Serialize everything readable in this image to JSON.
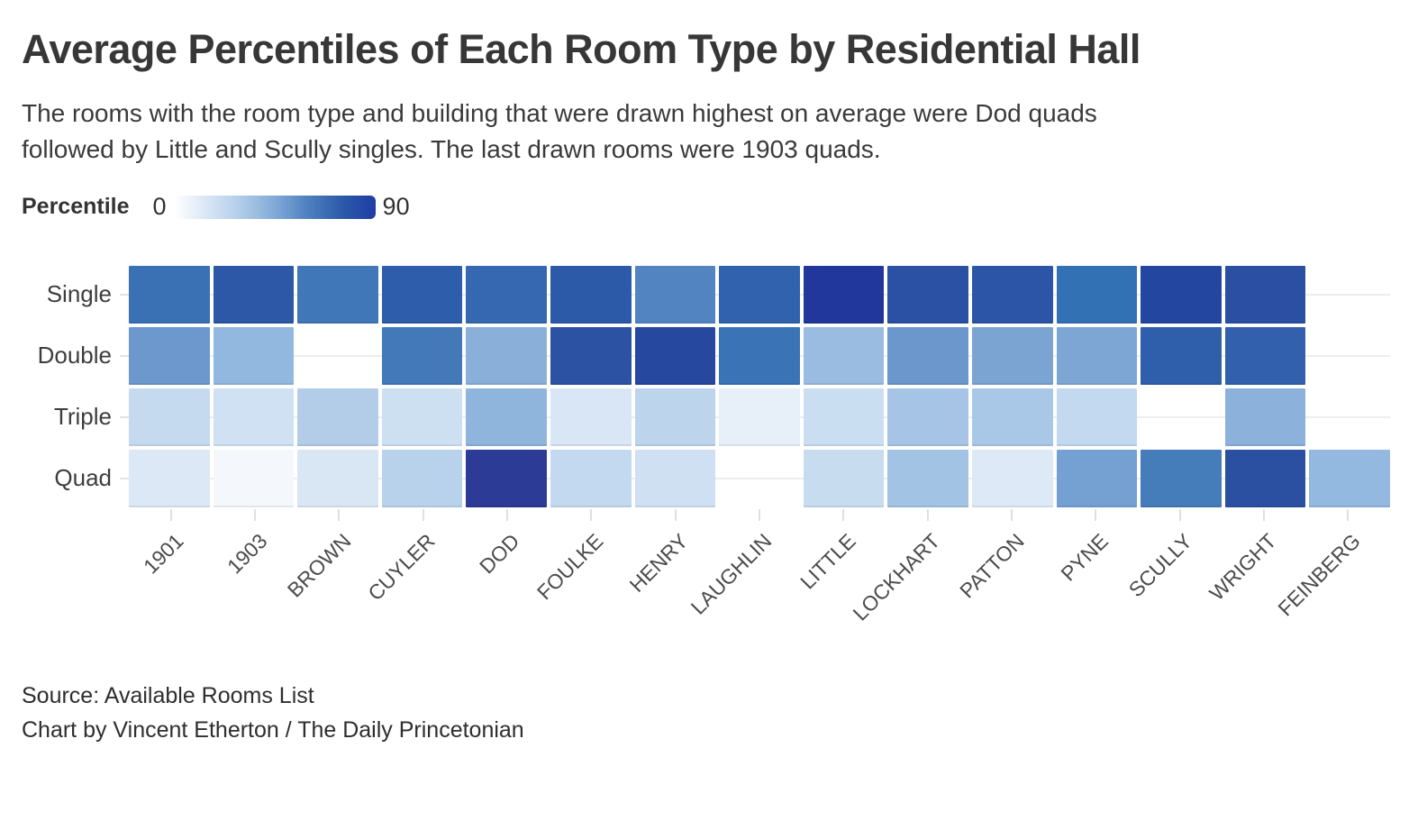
{
  "title": "Average Percentiles of Each Room Type by Residential Hall",
  "subtitle": "The rooms with the room type and building that were drawn highest on average were Dod quads followed by Little and Scully singles. The last drawn rooms were 1903 quads.",
  "legend": {
    "label": "Percentile",
    "min": "0",
    "max": "90"
  },
  "footer": {
    "source": "Source: Available Rooms List",
    "credit": "Chart by Vincent Etherton / The Daily Princetonian"
  },
  "chart_data": {
    "type": "heatmap",
    "title": "Average Percentiles of Each Room Type by Residential Hall",
    "legend_label": "Percentile",
    "legend_position": "top-left",
    "value_range": [
      0,
      90
    ],
    "color_scale": [
      "#fdfeff",
      "#d7e4f4",
      "#aecbe8",
      "#7fa9d7",
      "#4d7fbf",
      "#2c59a9",
      "#1e3da5"
    ],
    "rows": [
      "Single",
      "Double",
      "Triple",
      "Quad"
    ],
    "columns": [
      "1901",
      "1903",
      "BROWN",
      "CUYLER",
      "DOD",
      "FOULKE",
      "HENRY",
      "LAUGHLIN",
      "LITTLE",
      "LOCKHART",
      "PATTON",
      "PYNE",
      "SCULLY",
      "WRIGHT",
      "FEINBERG"
    ],
    "series": [
      {
        "name": "Single",
        "values": [
          68,
          76,
          66,
          75,
          71,
          76,
          60,
          72,
          88,
          79,
          77,
          68,
          84,
          80,
          null
        ],
        "colors": [
          "#3a70b4",
          "#2d57a7",
          "#4077b8",
          "#2d5dab",
          "#3568b0",
          "#2d59a9",
          "#5284c1",
          "#3162ad",
          "#21379b",
          "#2b51a5",
          "#2d55a7",
          "#3371b5",
          "#2347a1",
          "#2a4fa3",
          null
        ]
      },
      {
        "name": "Double",
        "values": [
          52,
          40,
          null,
          64,
          44,
          78,
          83,
          66,
          38,
          53,
          47,
          46,
          74,
          73,
          null
        ],
        "colors": [
          "#6c98cd",
          "#93b8e0",
          null,
          "#4379b9",
          "#8ab0da",
          "#2c52a4",
          "#26489e",
          "#3a74b7",
          "#9abce1",
          "#6b97cc",
          "#7ba4d3",
          "#7ea6d5",
          "#2f5fab",
          "#3360ac",
          null
        ]
      },
      {
        "name": "Triple",
        "values": [
          24,
          21,
          30,
          21,
          43,
          17,
          27,
          10,
          22,
          34,
          34,
          25,
          null,
          44,
          null
        ],
        "colors": [
          "#c6daef",
          "#cfe1f2",
          "#b3cde9",
          "#cde0f2",
          "#8fb5dd",
          "#d8e6f5",
          "#bcd4ec",
          "#e7eff8",
          "#cadef1",
          "#a6c5e6",
          "#a9c7e6",
          "#c2d9ef",
          null,
          "#8cb2dc",
          null
        ]
      },
      {
        "name": "Quad",
        "values": [
          14,
          3,
          15,
          28,
          89,
          25,
          21,
          null,
          23,
          35,
          14,
          49,
          63,
          80,
          40
        ],
        "colors": [
          "#dce8f5",
          "#f4f8fc",
          "#d9e7f5",
          "#b9d2ec",
          "#2b3b96",
          "#c3d9ef",
          "#cfe0f2",
          null,
          "#c8dcf0",
          "#a3c3e4",
          "#dde9f6",
          "#74a0d2",
          "#457cba",
          "#2b50a2",
          "#93b9e1"
        ]
      }
    ]
  }
}
